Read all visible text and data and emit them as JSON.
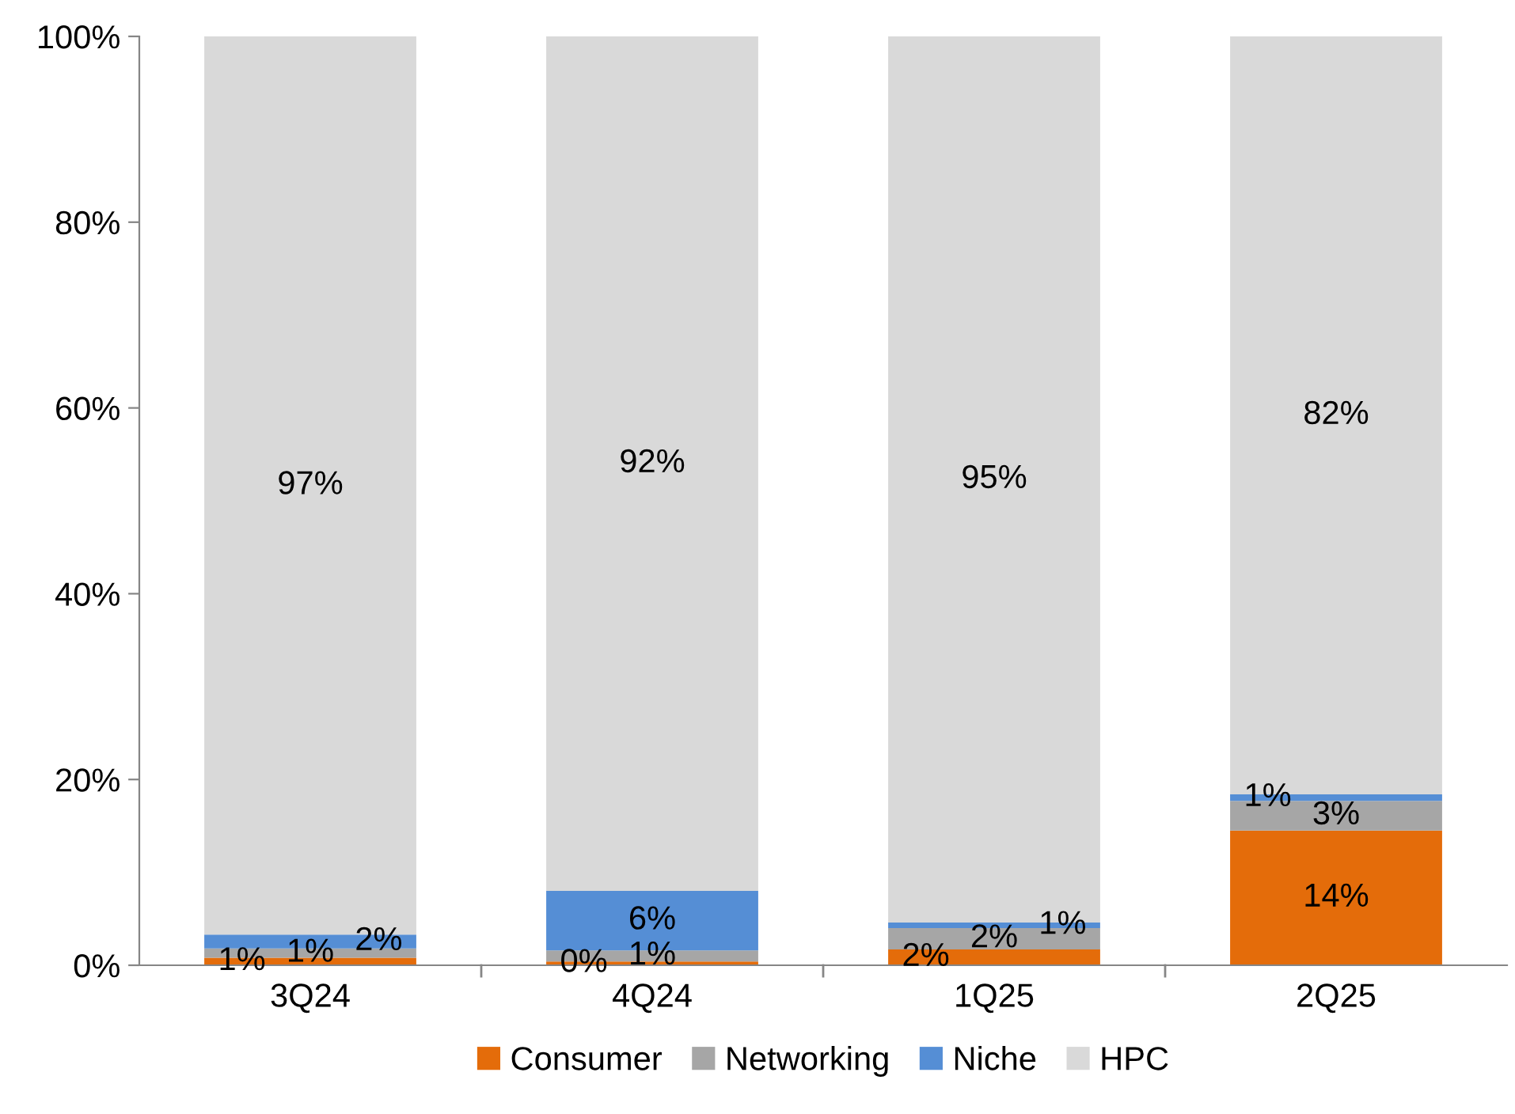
{
  "chart_data": {
    "type": "bar",
    "stacked": true,
    "categories": [
      "3Q24",
      "4Q24",
      "1Q25",
      "2Q25"
    ],
    "series": [
      {
        "name": "Consumer",
        "color": "#e46c0a",
        "values": [
          0.8,
          0.4,
          1.7,
          14.5
        ],
        "value_labels": [
          "1%",
          "0%",
          "2%",
          "14%"
        ]
      },
      {
        "name": "Networking",
        "color": "#a6a6a6",
        "values": [
          1.0,
          1.2,
          2.3,
          3.2
        ],
        "value_labels": [
          "1%",
          "1%",
          "2%",
          "3%"
        ]
      },
      {
        "name": "Niche",
        "color": "#558ed5",
        "values": [
          1.5,
          6.4,
          0.6,
          0.7
        ],
        "value_labels": [
          "2%",
          "6%",
          "1%",
          "1%"
        ]
      },
      {
        "name": "HPC",
        "color": "#d9d9d9",
        "values": [
          96.7,
          92.0,
          95.4,
          81.6
        ],
        "value_labels": [
          "97%",
          "92%",
          "95%",
          "82%"
        ]
      }
    ],
    "ylim": [
      0,
      100
    ],
    "yticks": [
      {
        "value": 0,
        "label": "0%"
      },
      {
        "value": 20,
        "label": "20%"
      },
      {
        "value": 40,
        "label": "40%"
      },
      {
        "value": 60,
        "label": "60%"
      },
      {
        "value": 80,
        "label": "80%"
      },
      {
        "value": 100,
        "label": "100%"
      }
    ],
    "grid": false,
    "legend": "bottom"
  }
}
